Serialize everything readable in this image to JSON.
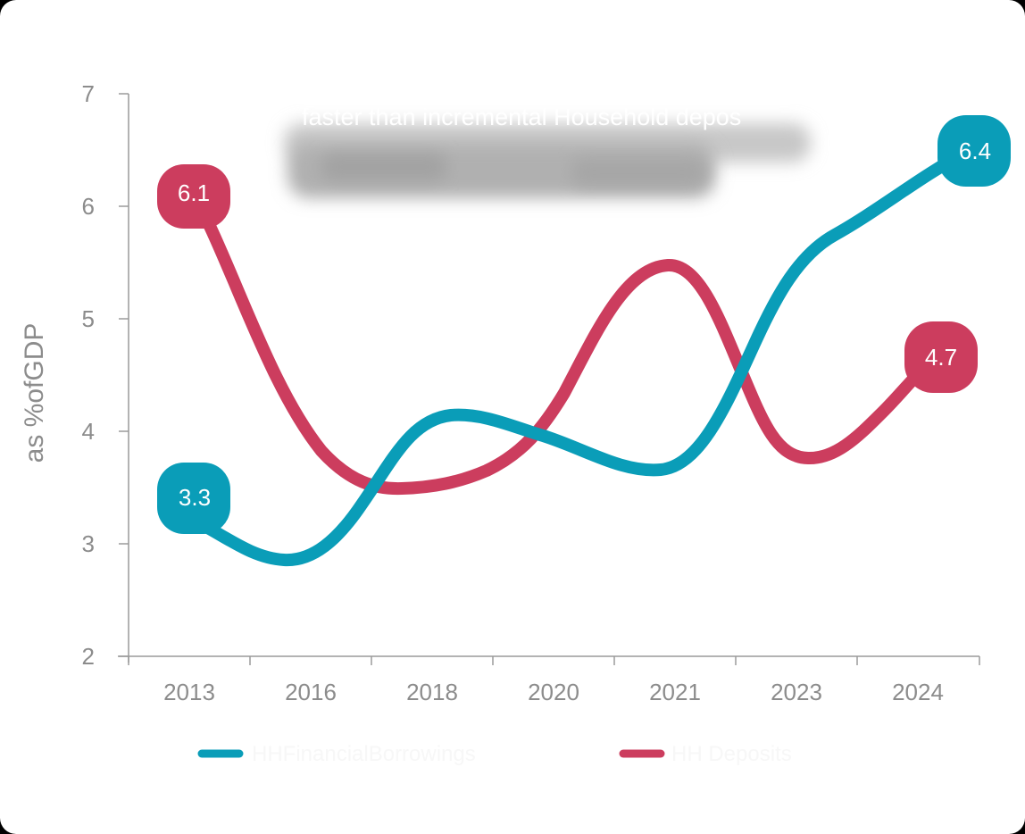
{
  "chart_data": {
    "type": "line",
    "title": "",
    "subtitle": "faster than incremental Household depos",
    "subtitle_obscured": true,
    "xlabel": "",
    "ylabel": "as %ofGDP",
    "ylim": [
      2,
      7
    ],
    "yticks": [
      "2",
      "3",
      "4",
      "5",
      "6",
      "7"
    ],
    "categories": [
      "2013",
      "2016",
      "2018",
      "2020",
      "2021",
      "2023",
      "2024"
    ],
    "grid": false,
    "legend_position": "bottom",
    "series": [
      {
        "name": "HHFinancialBorrowings",
        "color": "#0a9db8",
        "values": [
          3.3,
          2.9,
          4.1,
          3.9,
          3.7,
          5.6,
          6.4
        ],
        "labels": {
          "first": "3.3",
          "last": "6.4"
        }
      },
      {
        "name": "HH Deposits",
        "color": "#cc3d5e",
        "values": [
          6.1,
          3.8,
          3.5,
          4.3,
          5.4,
          3.8,
          4.7
        ],
        "labels": {
          "first": "6.1",
          "last": "4.7"
        }
      }
    ]
  },
  "colors": {
    "axis": "#9a9a9a",
    "text": "#8c8c8c",
    "borrowings": "#0a9db8",
    "deposits": "#cc3d5e",
    "background": "#ffffff"
  }
}
